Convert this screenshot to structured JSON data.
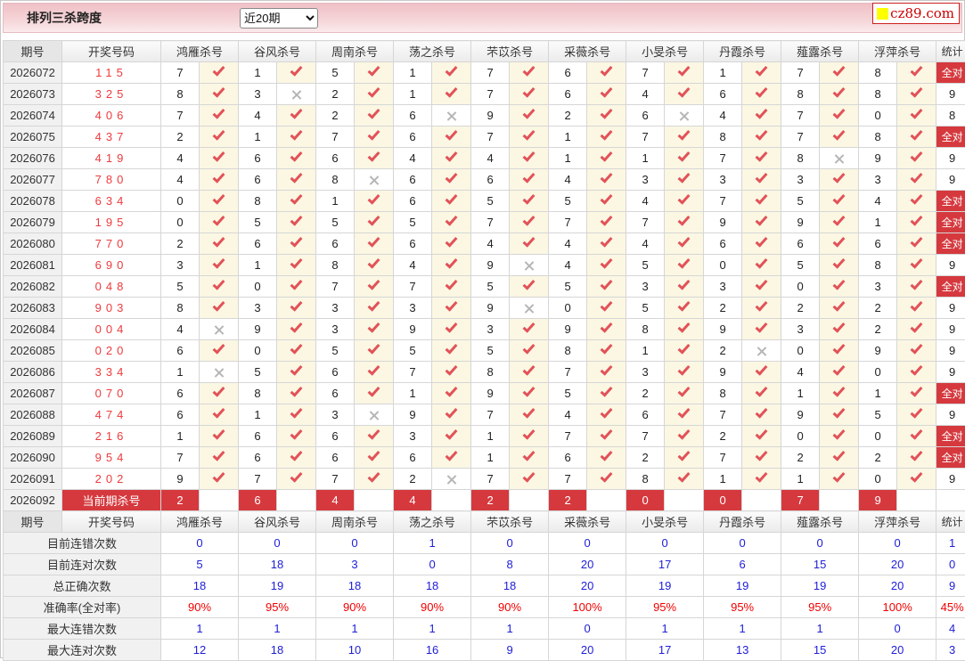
{
  "page": {
    "title": "排列三杀跨度",
    "period_selector": {
      "value": "近20期"
    },
    "logo": {
      "text": "cz89.com",
      "square_color": "#ffff00",
      "text_color": "#cc0000"
    }
  },
  "colors": {
    "accent_red": "#d5393e",
    "draw_number_red": "#ee3b3d",
    "check_red": "#e25258",
    "cross_grey": "#b5b5b5",
    "stat_blue": "#2020d8",
    "stat_red": "#f00000",
    "check_cell_bg": "#fbf7e3"
  },
  "table": {
    "header": {
      "period": "期号",
      "numbers": "开奖号码",
      "kills": [
        "鸿雁杀号",
        "谷风杀号",
        "周南杀号",
        "荡之杀号",
        "芣苡杀号",
        "采薇杀号",
        "小旻杀号",
        "丹霞杀号",
        "薤露杀号",
        "浮萍杀号"
      ],
      "stat": "统计"
    },
    "full_correct_label": "全对",
    "rows": [
      {
        "period": "2026072",
        "numbers": "115",
        "kills": [
          [
            7,
            true
          ],
          [
            1,
            true
          ],
          [
            5,
            true
          ],
          [
            1,
            true
          ],
          [
            7,
            true
          ],
          [
            6,
            true
          ],
          [
            7,
            true
          ],
          [
            1,
            true
          ],
          [
            7,
            true
          ],
          [
            8,
            true
          ]
        ],
        "stat": "全对"
      },
      {
        "period": "2026073",
        "numbers": "325",
        "kills": [
          [
            8,
            true
          ],
          [
            3,
            false
          ],
          [
            2,
            true
          ],
          [
            1,
            true
          ],
          [
            7,
            true
          ],
          [
            6,
            true
          ],
          [
            4,
            true
          ],
          [
            6,
            true
          ],
          [
            8,
            true
          ],
          [
            8,
            true
          ]
        ],
        "stat": "9"
      },
      {
        "period": "2026074",
        "numbers": "406",
        "kills": [
          [
            7,
            true
          ],
          [
            4,
            true
          ],
          [
            2,
            true
          ],
          [
            6,
            false
          ],
          [
            9,
            true
          ],
          [
            2,
            true
          ],
          [
            6,
            false
          ],
          [
            4,
            true
          ],
          [
            7,
            true
          ],
          [
            0,
            true
          ]
        ],
        "stat": "8"
      },
      {
        "period": "2026075",
        "numbers": "437",
        "kills": [
          [
            2,
            true
          ],
          [
            1,
            true
          ],
          [
            7,
            true
          ],
          [
            6,
            true
          ],
          [
            7,
            true
          ],
          [
            1,
            true
          ],
          [
            7,
            true
          ],
          [
            8,
            true
          ],
          [
            7,
            true
          ],
          [
            8,
            true
          ]
        ],
        "stat": "全对"
      },
      {
        "period": "2026076",
        "numbers": "419",
        "kills": [
          [
            4,
            true
          ],
          [
            6,
            true
          ],
          [
            6,
            true
          ],
          [
            4,
            true
          ],
          [
            4,
            true
          ],
          [
            1,
            true
          ],
          [
            1,
            true
          ],
          [
            7,
            true
          ],
          [
            8,
            false
          ],
          [
            9,
            true
          ]
        ],
        "stat": "9"
      },
      {
        "period": "2026077",
        "numbers": "780",
        "kills": [
          [
            4,
            true
          ],
          [
            6,
            true
          ],
          [
            8,
            false
          ],
          [
            6,
            true
          ],
          [
            6,
            true
          ],
          [
            4,
            true
          ],
          [
            3,
            true
          ],
          [
            3,
            true
          ],
          [
            3,
            true
          ],
          [
            3,
            true
          ]
        ],
        "stat": "9"
      },
      {
        "period": "2026078",
        "numbers": "634",
        "kills": [
          [
            0,
            true
          ],
          [
            8,
            true
          ],
          [
            1,
            true
          ],
          [
            6,
            true
          ],
          [
            5,
            true
          ],
          [
            5,
            true
          ],
          [
            4,
            true
          ],
          [
            7,
            true
          ],
          [
            5,
            true
          ],
          [
            4,
            true
          ]
        ],
        "stat": "全对"
      },
      {
        "period": "2026079",
        "numbers": "195",
        "kills": [
          [
            0,
            true
          ],
          [
            5,
            true
          ],
          [
            5,
            true
          ],
          [
            5,
            true
          ],
          [
            7,
            true
          ],
          [
            7,
            true
          ],
          [
            7,
            true
          ],
          [
            9,
            true
          ],
          [
            9,
            true
          ],
          [
            1,
            true
          ]
        ],
        "stat": "全对"
      },
      {
        "period": "2026080",
        "numbers": "770",
        "kills": [
          [
            2,
            true
          ],
          [
            6,
            true
          ],
          [
            6,
            true
          ],
          [
            6,
            true
          ],
          [
            4,
            true
          ],
          [
            4,
            true
          ],
          [
            4,
            true
          ],
          [
            6,
            true
          ],
          [
            6,
            true
          ],
          [
            6,
            true
          ]
        ],
        "stat": "全对"
      },
      {
        "period": "2026081",
        "numbers": "690",
        "kills": [
          [
            3,
            true
          ],
          [
            1,
            true
          ],
          [
            8,
            true
          ],
          [
            4,
            true
          ],
          [
            9,
            false
          ],
          [
            4,
            true
          ],
          [
            5,
            true
          ],
          [
            0,
            true
          ],
          [
            5,
            true
          ],
          [
            8,
            true
          ]
        ],
        "stat": "9"
      },
      {
        "period": "2026082",
        "numbers": "048",
        "kills": [
          [
            5,
            true
          ],
          [
            0,
            true
          ],
          [
            7,
            true
          ],
          [
            7,
            true
          ],
          [
            5,
            true
          ],
          [
            5,
            true
          ],
          [
            3,
            true
          ],
          [
            3,
            true
          ],
          [
            0,
            true
          ],
          [
            3,
            true
          ]
        ],
        "stat": "全对"
      },
      {
        "period": "2026083",
        "numbers": "903",
        "kills": [
          [
            8,
            true
          ],
          [
            3,
            true
          ],
          [
            3,
            true
          ],
          [
            3,
            true
          ],
          [
            9,
            false
          ],
          [
            0,
            true
          ],
          [
            5,
            true
          ],
          [
            2,
            true
          ],
          [
            2,
            true
          ],
          [
            2,
            true
          ]
        ],
        "stat": "9"
      },
      {
        "period": "2026084",
        "numbers": "004",
        "kills": [
          [
            4,
            false
          ],
          [
            9,
            true
          ],
          [
            3,
            true
          ],
          [
            9,
            true
          ],
          [
            3,
            true
          ],
          [
            9,
            true
          ],
          [
            8,
            true
          ],
          [
            9,
            true
          ],
          [
            3,
            true
          ],
          [
            2,
            true
          ]
        ],
        "stat": "9"
      },
      {
        "period": "2026085",
        "numbers": "020",
        "kills": [
          [
            6,
            true
          ],
          [
            0,
            true
          ],
          [
            5,
            true
          ],
          [
            5,
            true
          ],
          [
            5,
            true
          ],
          [
            8,
            true
          ],
          [
            1,
            true
          ],
          [
            2,
            false
          ],
          [
            0,
            true
          ],
          [
            9,
            true
          ]
        ],
        "stat": "9"
      },
      {
        "period": "2026086",
        "numbers": "334",
        "kills": [
          [
            1,
            false
          ],
          [
            5,
            true
          ],
          [
            6,
            true
          ],
          [
            7,
            true
          ],
          [
            8,
            true
          ],
          [
            7,
            true
          ],
          [
            3,
            true
          ],
          [
            9,
            true
          ],
          [
            4,
            true
          ],
          [
            0,
            true
          ]
        ],
        "stat": "9"
      },
      {
        "period": "2026087",
        "numbers": "070",
        "kills": [
          [
            6,
            true
          ],
          [
            8,
            true
          ],
          [
            6,
            true
          ],
          [
            1,
            true
          ],
          [
            9,
            true
          ],
          [
            5,
            true
          ],
          [
            2,
            true
          ],
          [
            8,
            true
          ],
          [
            1,
            true
          ],
          [
            1,
            true
          ]
        ],
        "stat": "全对"
      },
      {
        "period": "2026088",
        "numbers": "474",
        "kills": [
          [
            6,
            true
          ],
          [
            1,
            true
          ],
          [
            3,
            false
          ],
          [
            9,
            true
          ],
          [
            7,
            true
          ],
          [
            4,
            true
          ],
          [
            6,
            true
          ],
          [
            7,
            true
          ],
          [
            9,
            true
          ],
          [
            5,
            true
          ]
        ],
        "stat": "9"
      },
      {
        "period": "2026089",
        "numbers": "216",
        "kills": [
          [
            1,
            true
          ],
          [
            6,
            true
          ],
          [
            6,
            true
          ],
          [
            3,
            true
          ],
          [
            1,
            true
          ],
          [
            7,
            true
          ],
          [
            7,
            true
          ],
          [
            2,
            true
          ],
          [
            0,
            true
          ],
          [
            0,
            true
          ]
        ],
        "stat": "全对"
      },
      {
        "period": "2026090",
        "numbers": "954",
        "kills": [
          [
            7,
            true
          ],
          [
            6,
            true
          ],
          [
            6,
            true
          ],
          [
            6,
            true
          ],
          [
            1,
            true
          ],
          [
            6,
            true
          ],
          [
            2,
            true
          ],
          [
            7,
            true
          ],
          [
            2,
            true
          ],
          [
            2,
            true
          ]
        ],
        "stat": "全对"
      },
      {
        "period": "2026091",
        "numbers": "202",
        "kills": [
          [
            9,
            true
          ],
          [
            7,
            true
          ],
          [
            7,
            true
          ],
          [
            2,
            false
          ],
          [
            7,
            true
          ],
          [
            7,
            true
          ],
          [
            8,
            true
          ],
          [
            1,
            true
          ],
          [
            1,
            true
          ],
          [
            0,
            true
          ]
        ],
        "stat": "9"
      }
    ],
    "current_row": {
      "period": "2026092",
      "label": "当前期杀号",
      "kills": [
        2,
        6,
        4,
        4,
        2,
        2,
        0,
        0,
        7,
        9
      ]
    },
    "stats": [
      {
        "label": "目前连错次数",
        "style": "blue",
        "values": [
          "0",
          "0",
          "0",
          "1",
          "0",
          "0",
          "0",
          "0",
          "0",
          "0",
          "1"
        ]
      },
      {
        "label": "目前连对次数",
        "style": "blue",
        "values": [
          "5",
          "18",
          "3",
          "0",
          "8",
          "20",
          "17",
          "6",
          "15",
          "20",
          "0"
        ]
      },
      {
        "label": "总正确次数",
        "style": "blue",
        "values": [
          "18",
          "19",
          "18",
          "18",
          "18",
          "20",
          "19",
          "19",
          "19",
          "20",
          "9"
        ]
      },
      {
        "label": "准确率(全对率)",
        "style": "red",
        "values": [
          "90%",
          "95%",
          "90%",
          "90%",
          "90%",
          "100%",
          "95%",
          "95%",
          "95%",
          "100%",
          "45%"
        ]
      },
      {
        "label": "最大连错次数",
        "style": "blue",
        "values": [
          "1",
          "1",
          "1",
          "1",
          "1",
          "0",
          "1",
          "1",
          "1",
          "0",
          "4"
        ]
      },
      {
        "label": "最大连对次数",
        "style": "blue",
        "values": [
          "12",
          "18",
          "10",
          "16",
          "9",
          "20",
          "17",
          "13",
          "15",
          "20",
          "3"
        ]
      }
    ]
  }
}
